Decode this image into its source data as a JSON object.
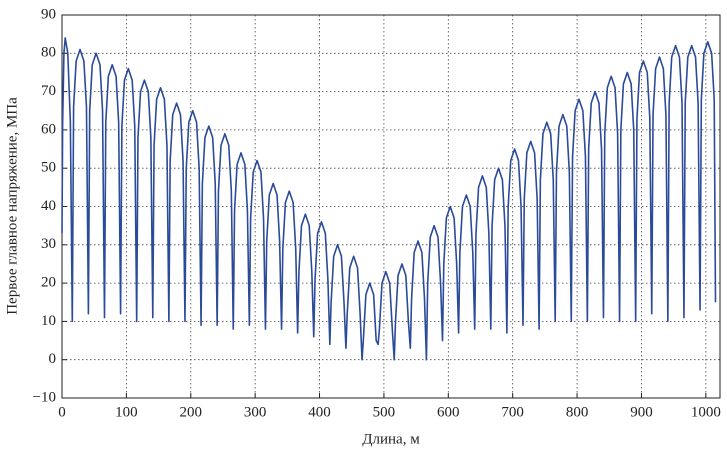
{
  "chart_data": {
    "type": "line",
    "x_label": "Длина, м",
    "y_label": "Первое главное напряжение, МПа",
    "xlim": [
      0,
      1022
    ],
    "ylim": [
      -10,
      90
    ],
    "xticks": [
      0,
      100,
      200,
      300,
      400,
      500,
      600,
      700,
      800,
      900,
      1000
    ],
    "yticks": [
      {
        "value": -10,
        "label": "−10"
      },
      0,
      10,
      20,
      30,
      40,
      50,
      60,
      70,
      80,
      90
    ],
    "grid": true,
    "series": [
      {
        "color": "#2b4a9a",
        "x": [
          0,
          1,
          3,
          5,
          9,
          13,
          16,
          18,
          22,
          28,
          34,
          38,
          41,
          43,
          47,
          53,
          59,
          63,
          66,
          68,
          72,
          78,
          84,
          88,
          91,
          93,
          97,
          103,
          109,
          113,
          116,
          118,
          122,
          128,
          134,
          138,
          141,
          143,
          147,
          153,
          159,
          163,
          166,
          168,
          172,
          178,
          184,
          188,
          191,
          193,
          197,
          203,
          209,
          213,
          216,
          218,
          222,
          228,
          234,
          238,
          241,
          243,
          247,
          253,
          259,
          263,
          266,
          268,
          272,
          278,
          284,
          288,
          291,
          293,
          297,
          303,
          309,
          313,
          316,
          318,
          322,
          328,
          334,
          338,
          341,
          343,
          347,
          353,
          359,
          363,
          366,
          368,
          372,
          378,
          384,
          388,
          391,
          393,
          397,
          403,
          409,
          413,
          416,
          418,
          422,
          428,
          434,
          438,
          441,
          443,
          447,
          453,
          459,
          463,
          466,
          468,
          472,
          478,
          484,
          488,
          491,
          493,
          497,
          503,
          509,
          513,
          516,
          518,
          522,
          528,
          534,
          538,
          541,
          543,
          547,
          553,
          559,
          563,
          566,
          568,
          572,
          578,
          584,
          588,
          591,
          593,
          597,
          603,
          609,
          613,
          616,
          618,
          622,
          628,
          634,
          638,
          641,
          643,
          647,
          653,
          659,
          663,
          666,
          668,
          672,
          678,
          684,
          688,
          691,
          693,
          697,
          703,
          709,
          713,
          716,
          718,
          722,
          728,
          734,
          738,
          741,
          743,
          747,
          753,
          759,
          763,
          766,
          768,
          772,
          778,
          784,
          788,
          791,
          793,
          797,
          803,
          809,
          813,
          816,
          818,
          822,
          828,
          834,
          838,
          841,
          843,
          847,
          853,
          859,
          863,
          866,
          868,
          872,
          878,
          884,
          888,
          891,
          893,
          897,
          903,
          909,
          913,
          916,
          918,
          922,
          928,
          934,
          938,
          941,
          943,
          947,
          953,
          959,
          963,
          966,
          968,
          972,
          978,
          984,
          988,
          991,
          993,
          997,
          1003,
          1009,
          1013,
          1015
        ],
        "values": [
          33,
          62,
          80,
          84,
          80,
          62,
          10,
          66,
          78,
          81,
          78,
          66,
          12,
          65,
          77,
          80,
          77,
          65,
          11,
          62,
          74,
          77,
          74,
          62,
          12,
          61,
          73,
          76,
          73,
          61,
          10,
          58,
          70,
          73,
          70,
          58,
          11,
          56,
          68,
          71,
          68,
          56,
          10,
          52,
          64,
          67,
          64,
          52,
          10,
          50,
          62,
          65,
          62,
          50,
          9,
          46,
          58,
          61,
          58,
          46,
          9,
          44,
          56,
          59,
          56,
          44,
          8,
          39,
          51,
          54,
          51,
          39,
          9,
          37,
          49,
          52,
          49,
          37,
          8,
          31,
          43,
          46,
          43,
          31,
          8,
          29,
          41,
          44,
          41,
          29,
          7,
          23,
          35,
          38,
          35,
          23,
          6,
          21,
          33,
          36,
          33,
          21,
          4,
          15,
          27,
          30,
          27,
          15,
          3,
          12,
          24,
          27,
          24,
          12,
          0,
          5,
          17,
          20,
          17,
          5,
          4,
          8,
          20,
          23,
          20,
          8,
          0,
          10,
          22,
          25,
          22,
          10,
          3,
          16,
          28,
          31,
          28,
          16,
          0,
          20,
          32,
          35,
          32,
          20,
          5,
          25,
          37,
          40,
          37,
          25,
          7,
          28,
          40,
          43,
          40,
          28,
          8,
          33,
          45,
          48,
          45,
          33,
          8,
          35,
          47,
          50,
          47,
          35,
          7,
          40,
          52,
          55,
          52,
          40,
          9,
          42,
          54,
          57,
          54,
          42,
          8,
          47,
          59,
          62,
          59,
          47,
          10,
          49,
          61,
          64,
          61,
          49,
          10,
          53,
          65,
          68,
          65,
          53,
          10,
          55,
          67,
          70,
          67,
          55,
          11,
          59,
          71,
          74,
          71,
          59,
          10,
          60,
          72,
          75,
          72,
          60,
          10,
          63,
          75,
          78,
          75,
          63,
          12,
          64,
          76,
          79,
          76,
          64,
          10,
          67,
          79,
          82,
          79,
          67,
          11,
          67,
          79,
          82,
          79,
          67,
          13,
          68,
          80,
          83,
          80,
          68,
          15
        ]
      }
    ]
  }
}
